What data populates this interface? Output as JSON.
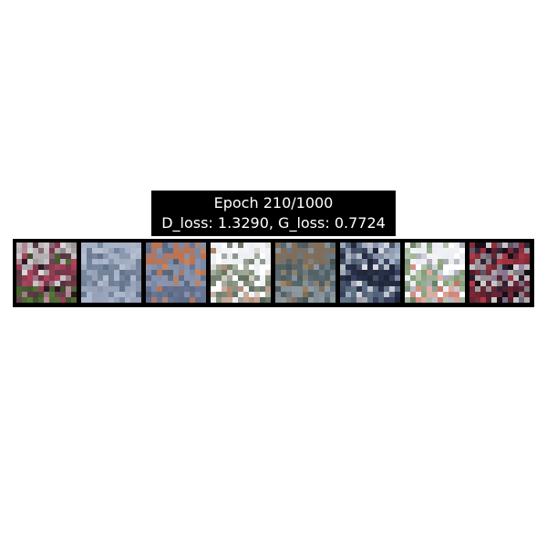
{
  "title": {
    "epoch_line": "Epoch 210/1000",
    "loss_line": "D_loss: 1.3290, G_loss: 0.7724"
  },
  "samples": [
    {
      "name": "generated-sample-1",
      "palette": [
        "#2a1a22",
        "#ffffff",
        "#c84d6a",
        "#5a8a3a",
        "#7a4a5a",
        "#e0b0c0"
      ]
    },
    {
      "name": "generated-sample-2",
      "palette": [
        "#8a98b0",
        "#c0c8d8",
        "#6a7a90",
        "#a0aac0",
        "#b4c0d4",
        "#5a6a84"
      ]
    },
    {
      "name": "generated-sample-3",
      "palette": [
        "#7a8aa8",
        "#d86a30",
        "#9098b0",
        "#5a6480",
        "#e08040",
        "#4a5a70"
      ]
    },
    {
      "name": "generated-sample-4",
      "palette": [
        "#ffffff",
        "#e8ecf0",
        "#4a5a40",
        "#9a6a4a",
        "#3a4a3a",
        "#c8c0b0"
      ]
    },
    {
      "name": "generated-sample-5",
      "palette": [
        "#6a7a84",
        "#8a6a4a",
        "#4a5a5a",
        "#9aa4a8",
        "#3a4a4a",
        "#a8845a"
      ]
    },
    {
      "name": "generated-sample-6",
      "palette": [
        "#3a4060",
        "#c0d0e0",
        "#1a2030",
        "#6a8090",
        "#ffffff",
        "#4a5a6a"
      ]
    },
    {
      "name": "generated-sample-7",
      "palette": [
        "#ffffff",
        "#e8e8f0",
        "#6a8a5a",
        "#c05a4a",
        "#9a9aa8",
        "#4a6a4a"
      ]
    },
    {
      "name": "generated-sample-8",
      "palette": [
        "#1a1018",
        "#d04050",
        "#ffffff",
        "#8a3040",
        "#3a2a40",
        "#b0a0c0"
      ]
    }
  ]
}
